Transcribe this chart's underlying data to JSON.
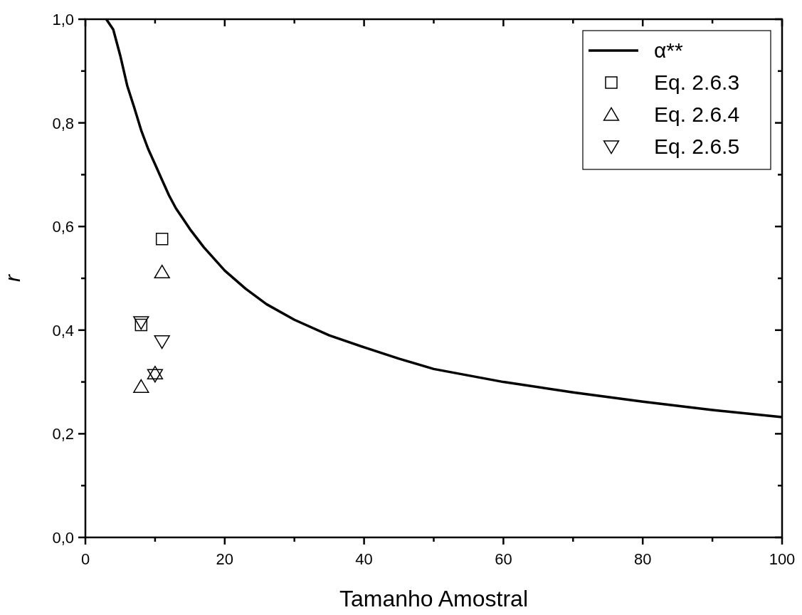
{
  "chart_data": {
    "type": "line",
    "xlabel": "Tamanho Amostral",
    "ylabel": "r",
    "xlim": [
      0,
      100
    ],
    "xticks": [
      0,
      20,
      40,
      60,
      80,
      100
    ],
    "ylim": [
      0,
      1
    ],
    "yticks": [
      {
        "value": 0,
        "label": "0,0"
      },
      {
        "value": 0.2,
        "label": "0,2"
      },
      {
        "value": 0.4,
        "label": "0,4"
      },
      {
        "value": 0.6,
        "label": "0,6"
      },
      {
        "value": 0.8,
        "label": "0,8"
      },
      {
        "value": 1,
        "label": "1,0"
      }
    ],
    "legend": "top right",
    "grid": false,
    "series": [
      {
        "name": "α**",
        "color": "#000000",
        "marker": "none",
        "x": [
          3,
          4,
          5,
          6,
          7,
          8,
          9,
          10,
          11,
          12,
          13,
          15,
          17,
          20,
          23,
          26,
          30,
          35,
          40,
          45,
          50,
          60,
          70,
          80,
          90,
          100
        ],
        "values": [
          1.0,
          0.98,
          0.93,
          0.872,
          0.83,
          0.786,
          0.75,
          0.72,
          0.69,
          0.66,
          0.635,
          0.595,
          0.56,
          0.515,
          0.48,
          0.45,
          0.42,
          0.39,
          0.367,
          0.345,
          0.325,
          0.3,
          0.28,
          0.262,
          0.246,
          0.232
        ]
      },
      {
        "name": "Eq. 2.6.3",
        "type": "scatter",
        "color": "#000000",
        "marker": "square",
        "x": [
          8,
          11
        ],
        "values": [
          0.41,
          0.576
        ]
      },
      {
        "name": "Eq. 2.6.4",
        "type": "scatter",
        "color": "#000000",
        "marker": "triangle",
        "x": [
          8,
          10,
          11
        ],
        "values": [
          0.291,
          0.317,
          0.512
        ]
      },
      {
        "name": "Eq. 2.6.5",
        "type": "scatter",
        "color": "#000000",
        "marker": "triangle-down",
        "x": [
          8,
          10,
          11
        ],
        "values": [
          0.415,
          0.313,
          0.378
        ]
      }
    ]
  }
}
